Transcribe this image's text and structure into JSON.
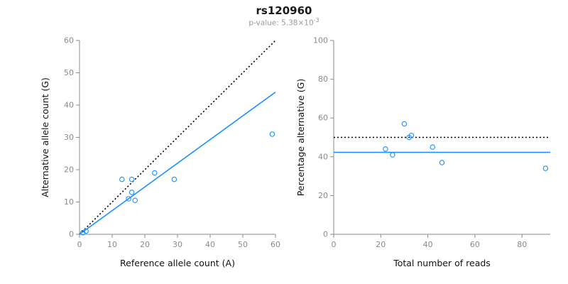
{
  "figure": {
    "title": "rs120960",
    "subtitle_base": "p-value: 5.38×10",
    "subtitle_exponent": "-3"
  },
  "colors": {
    "accent_blue": "#1E90FF",
    "identity_line_black": "#000000",
    "axis_gray": "#8a8a8a"
  },
  "chart_data": [
    {
      "type": "scatter",
      "panel": "left",
      "xlabel": "Reference allele count (A)",
      "ylabel": "Alternative allele count (G)",
      "xlim": [
        0,
        60
      ],
      "ylim": [
        0,
        60
      ],
      "xticks": [
        0,
        10,
        20,
        30,
        40,
        50,
        60
      ],
      "yticks": [
        0,
        10,
        20,
        30,
        40,
        50,
        60
      ],
      "point_color": "#1E90FF",
      "points": [
        [
          1,
          0.5
        ],
        [
          2,
          1
        ],
        [
          13,
          17
        ],
        [
          16,
          17
        ],
        [
          15,
          11
        ],
        [
          16,
          13
        ],
        [
          17,
          10.5
        ],
        [
          23,
          19
        ],
        [
          29,
          17
        ],
        [
          59,
          31
        ]
      ],
      "lines": [
        {
          "name": "identity-line",
          "style": "dotted",
          "color": "#000000",
          "from": [
            0,
            0
          ],
          "to": [
            60,
            60
          ]
        },
        {
          "name": "regression-line",
          "style": "solid",
          "color": "#1E90FF",
          "from": [
            0,
            0
          ],
          "to": [
            60,
            44
          ]
        }
      ]
    },
    {
      "type": "scatter",
      "panel": "right",
      "xlabel": "Total number of reads",
      "ylabel": "Percentage alternative (G)",
      "xlim": [
        0,
        92
      ],
      "ylim": [
        0,
        100
      ],
      "xticks": [
        0,
        20,
        40,
        60,
        80
      ],
      "yticks": [
        0,
        20,
        40,
        60,
        80,
        100
      ],
      "point_color": "#1E90FF",
      "points": [
        [
          22,
          44
        ],
        [
          25,
          41
        ],
        [
          30,
          57
        ],
        [
          32,
          50
        ],
        [
          33,
          51
        ],
        [
          42,
          45
        ],
        [
          46,
          37
        ],
        [
          90,
          34
        ]
      ],
      "lines": [
        {
          "name": "expected-50pct-line",
          "style": "dotted",
          "color": "#000000",
          "from": [
            0,
            50
          ],
          "to": [
            92,
            50
          ]
        },
        {
          "name": "observed-mean-line",
          "style": "solid",
          "color": "#1E90FF",
          "from": [
            0,
            42.3
          ],
          "to": [
            92,
            42.3
          ]
        }
      ]
    }
  ]
}
